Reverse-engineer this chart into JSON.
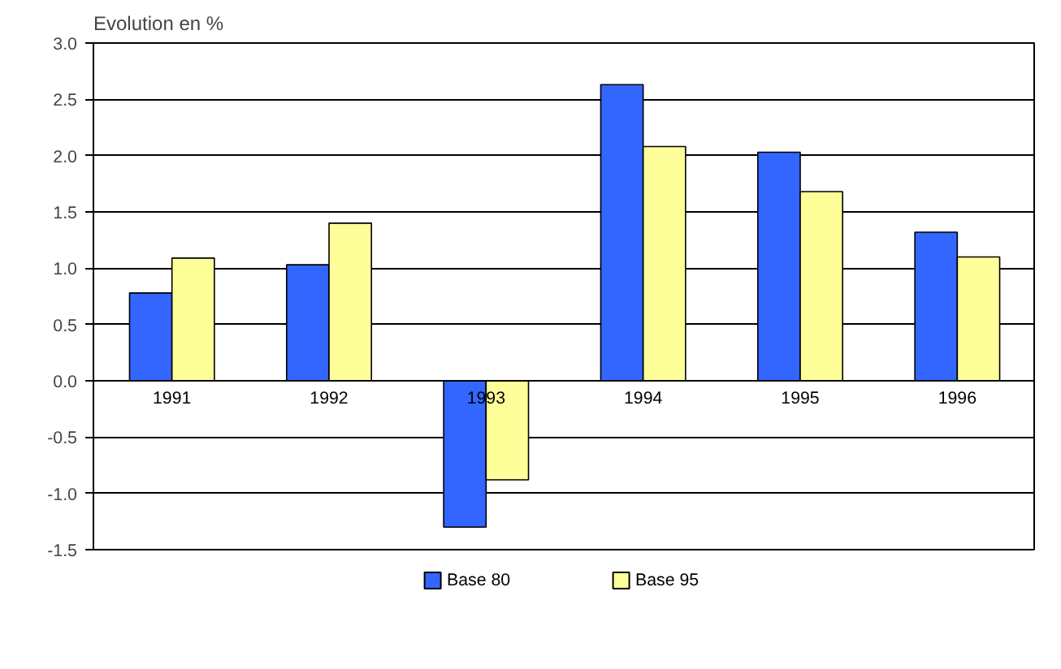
{
  "chart_data": {
    "type": "bar",
    "ylabel": "Evolution en %",
    "categories": [
      "1991",
      "1992",
      "1993",
      "1994",
      "1995",
      "1996"
    ],
    "series": [
      {
        "name": "Base 80",
        "color": "#3366ff",
        "values": [
          0.78,
          1.03,
          -1.3,
          2.63,
          2.03,
          1.32
        ]
      },
      {
        "name": "Base 95",
        "color": "#ffff99",
        "values": [
          1.09,
          1.4,
          -0.88,
          2.08,
          1.68,
          1.1
        ]
      }
    ],
    "ylim": [
      -1.5,
      3.0
    ],
    "yticks": [
      {
        "value": -1.5,
        "label": "-1.5"
      },
      {
        "value": -1.0,
        "label": "-1.0"
      },
      {
        "value": -0.5,
        "label": "-0.5"
      },
      {
        "value": 0.0,
        "label": "0.0"
      },
      {
        "value": 0.5,
        "label": "0.5"
      },
      {
        "value": 1.0,
        "label": "1.0"
      },
      {
        "value": 1.5,
        "label": "1.5"
      },
      {
        "value": 2.0,
        "label": "2.0"
      },
      {
        "value": 2.5,
        "label": "2.5"
      },
      {
        "value": 3.0,
        "label": "3.0"
      }
    ],
    "grid": "y",
    "legend": "bottom"
  }
}
